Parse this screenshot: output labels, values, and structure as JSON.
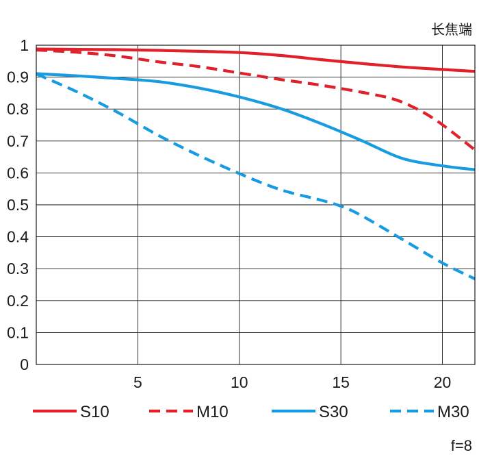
{
  "chart_data": {
    "type": "line",
    "title": "长焦端",
    "note": "f=8",
    "xlabel": "",
    "ylabel": "",
    "xlim": [
      0,
      21.6
    ],
    "ylim": [
      0,
      1
    ],
    "xticks": [
      5,
      10,
      15,
      20
    ],
    "yticks": [
      0,
      0.1,
      0.2,
      0.3,
      0.4,
      0.5,
      0.6,
      0.7,
      0.8,
      0.9,
      1
    ],
    "xtick_labels": [
      "5",
      "10",
      "15",
      "20"
    ],
    "ytick_labels": [
      "0",
      "0.1",
      "0.2",
      "0.3",
      "0.4",
      "0.5",
      "0.6",
      "0.7",
      "0.8",
      "0.9",
      "1"
    ],
    "grid": true,
    "legend_position": "bottom",
    "series": [
      {
        "name": "S10",
        "color": "#e0202a",
        "style": "solid",
        "x": [
          0,
          2,
          4,
          6,
          8,
          10,
          12,
          14,
          16,
          18,
          20,
          21.6
        ],
        "y": [
          0.988,
          0.987,
          0.986,
          0.984,
          0.981,
          0.977,
          0.968,
          0.955,
          0.943,
          0.932,
          0.924,
          0.918
        ]
      },
      {
        "name": "M10",
        "color": "#e0202a",
        "style": "dashed",
        "x": [
          0,
          2,
          4,
          6,
          8,
          10,
          12,
          14,
          16,
          17.5,
          18.5,
          19.5,
          20.5,
          21.6
        ],
        "y": [
          0.985,
          0.978,
          0.966,
          0.948,
          0.933,
          0.913,
          0.893,
          0.875,
          0.853,
          0.833,
          0.808,
          0.773,
          0.727,
          0.672
        ]
      },
      {
        "name": "S30",
        "color": "#189be0",
        "style": "solid",
        "x": [
          0,
          2,
          4,
          6,
          8,
          10,
          12,
          14,
          16,
          18,
          20,
          21.6
        ],
        "y": [
          0.911,
          0.904,
          0.896,
          0.886,
          0.866,
          0.838,
          0.802,
          0.755,
          0.702,
          0.646,
          0.622,
          0.61
        ]
      },
      {
        "name": "M30",
        "color": "#189be0",
        "style": "dashed",
        "x": [
          0,
          2,
          4,
          6,
          8,
          10,
          12,
          14,
          15,
          16,
          18,
          20,
          21.6
        ],
        "y": [
          0.91,
          0.854,
          0.79,
          0.718,
          0.655,
          0.598,
          0.548,
          0.515,
          0.496,
          0.467,
          0.393,
          0.318,
          0.268
        ]
      }
    ]
  }
}
